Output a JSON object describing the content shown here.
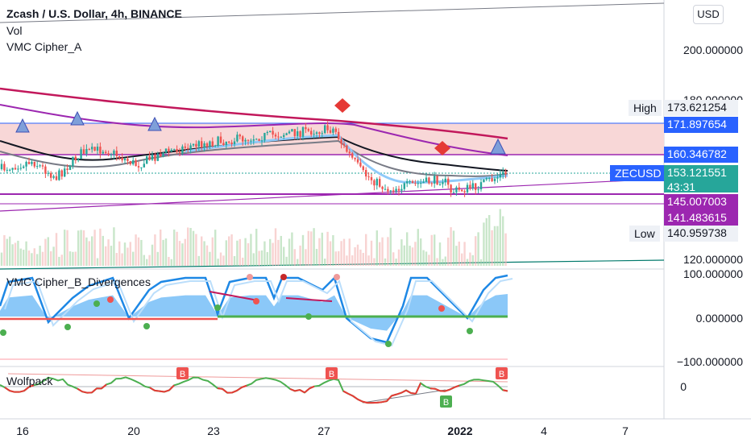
{
  "header": {
    "title": "Zcash / U.S. Dollar, 4h, BINANCE",
    "indicator_vol": "Vol",
    "indicator_vmc_a": "VMC Cipher_A",
    "indicator_vmc_b": "VMC Cipher_B_Divergences",
    "indicator_wolfpack": "Wolfpack"
  },
  "currency_button": "USD",
  "price_axis": {
    "ticks": [
      "200.000000",
      "120.000000"
    ],
    "partial_tick": "180.000000"
  },
  "price_tags": {
    "high_label": "High",
    "high_value": "173.621254",
    "level1": "171.897654",
    "level2": "160.346782",
    "symbol": "ZECUSD",
    "last_price": "153.121551",
    "countdown": "43:31",
    "level3": "145.007003",
    "level4": "141.483615",
    "low_label": "Low",
    "low_value": "140.959738"
  },
  "oscillator_axis": {
    "ticks": [
      "100.000000",
      "0.000000",
      "−100.000000"
    ]
  },
  "wolfpack_axis": {
    "tick": "0"
  },
  "time_axis": {
    "ticks": [
      {
        "label": "16",
        "bold": false
      },
      {
        "label": "20",
        "bold": false
      },
      {
        "label": "23",
        "bold": false
      },
      {
        "label": "27",
        "bold": false
      },
      {
        "label": "2022",
        "bold": true
      },
      {
        "label": "4",
        "bold": false
      },
      {
        "label": "7",
        "bold": false
      }
    ]
  },
  "markers": {
    "divergence_label": "B"
  },
  "colors": {
    "up": "#26a69a",
    "down": "#ef5350",
    "purple": "#9c27b0",
    "blue_tag": "#2962ff",
    "zec_tag": "#2962ff",
    "zone_fill": "#f8d7d7",
    "wave_blue": "#1e88e5",
    "wolf_green": "#4caf50",
    "wolf_red": "#e53935"
  }
}
